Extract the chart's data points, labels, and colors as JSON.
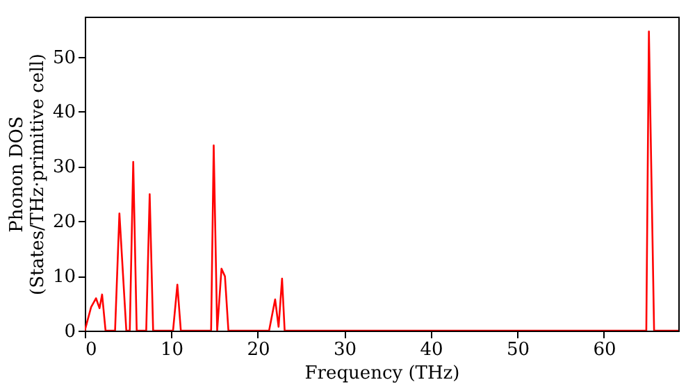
{
  "chart_data": {
    "type": "line",
    "xlabel": "Frequency (THz)",
    "ylabel": "Phonon DOS\n(States/THz·primitive cell)",
    "x": [
      0,
      0.73,
      1.3,
      1.7,
      2.0,
      2.4,
      3.5,
      4.0,
      4.8,
      5.2,
      5.6,
      6.0,
      7.1,
      7.5,
      7.9,
      10.2,
      10.7,
      11.1,
      14.6,
      14.9,
      15.3,
      15.8,
      16.2,
      16.6,
      21.3,
      22.0,
      22.4,
      22.8,
      23.1,
      64.9,
      65.2,
      65.8,
      68.6
    ],
    "series": [
      {
        "color": "#ff0000",
        "values": [
          0,
          4.3,
          5.9,
          4.1,
          6.6,
          0,
          0,
          21.4,
          0,
          0,
          30.8,
          0,
          0,
          24.9,
          0,
          0,
          8.4,
          0,
          0,
          33.8,
          0,
          11.3,
          9.9,
          0,
          0,
          5.7,
          0.7,
          9.5,
          0,
          0,
          54.6,
          0,
          0
        ]
      }
    ],
    "xlim": [
      0,
      68.6
    ],
    "ylim": [
      0,
      57.3
    ],
    "xticks": [
      0,
      10,
      20,
      30,
      40,
      50,
      60
    ],
    "yticks": [
      0,
      10,
      20,
      30,
      40,
      50
    ],
    "grid": false,
    "marker": "none",
    "line_style": "solid"
  }
}
